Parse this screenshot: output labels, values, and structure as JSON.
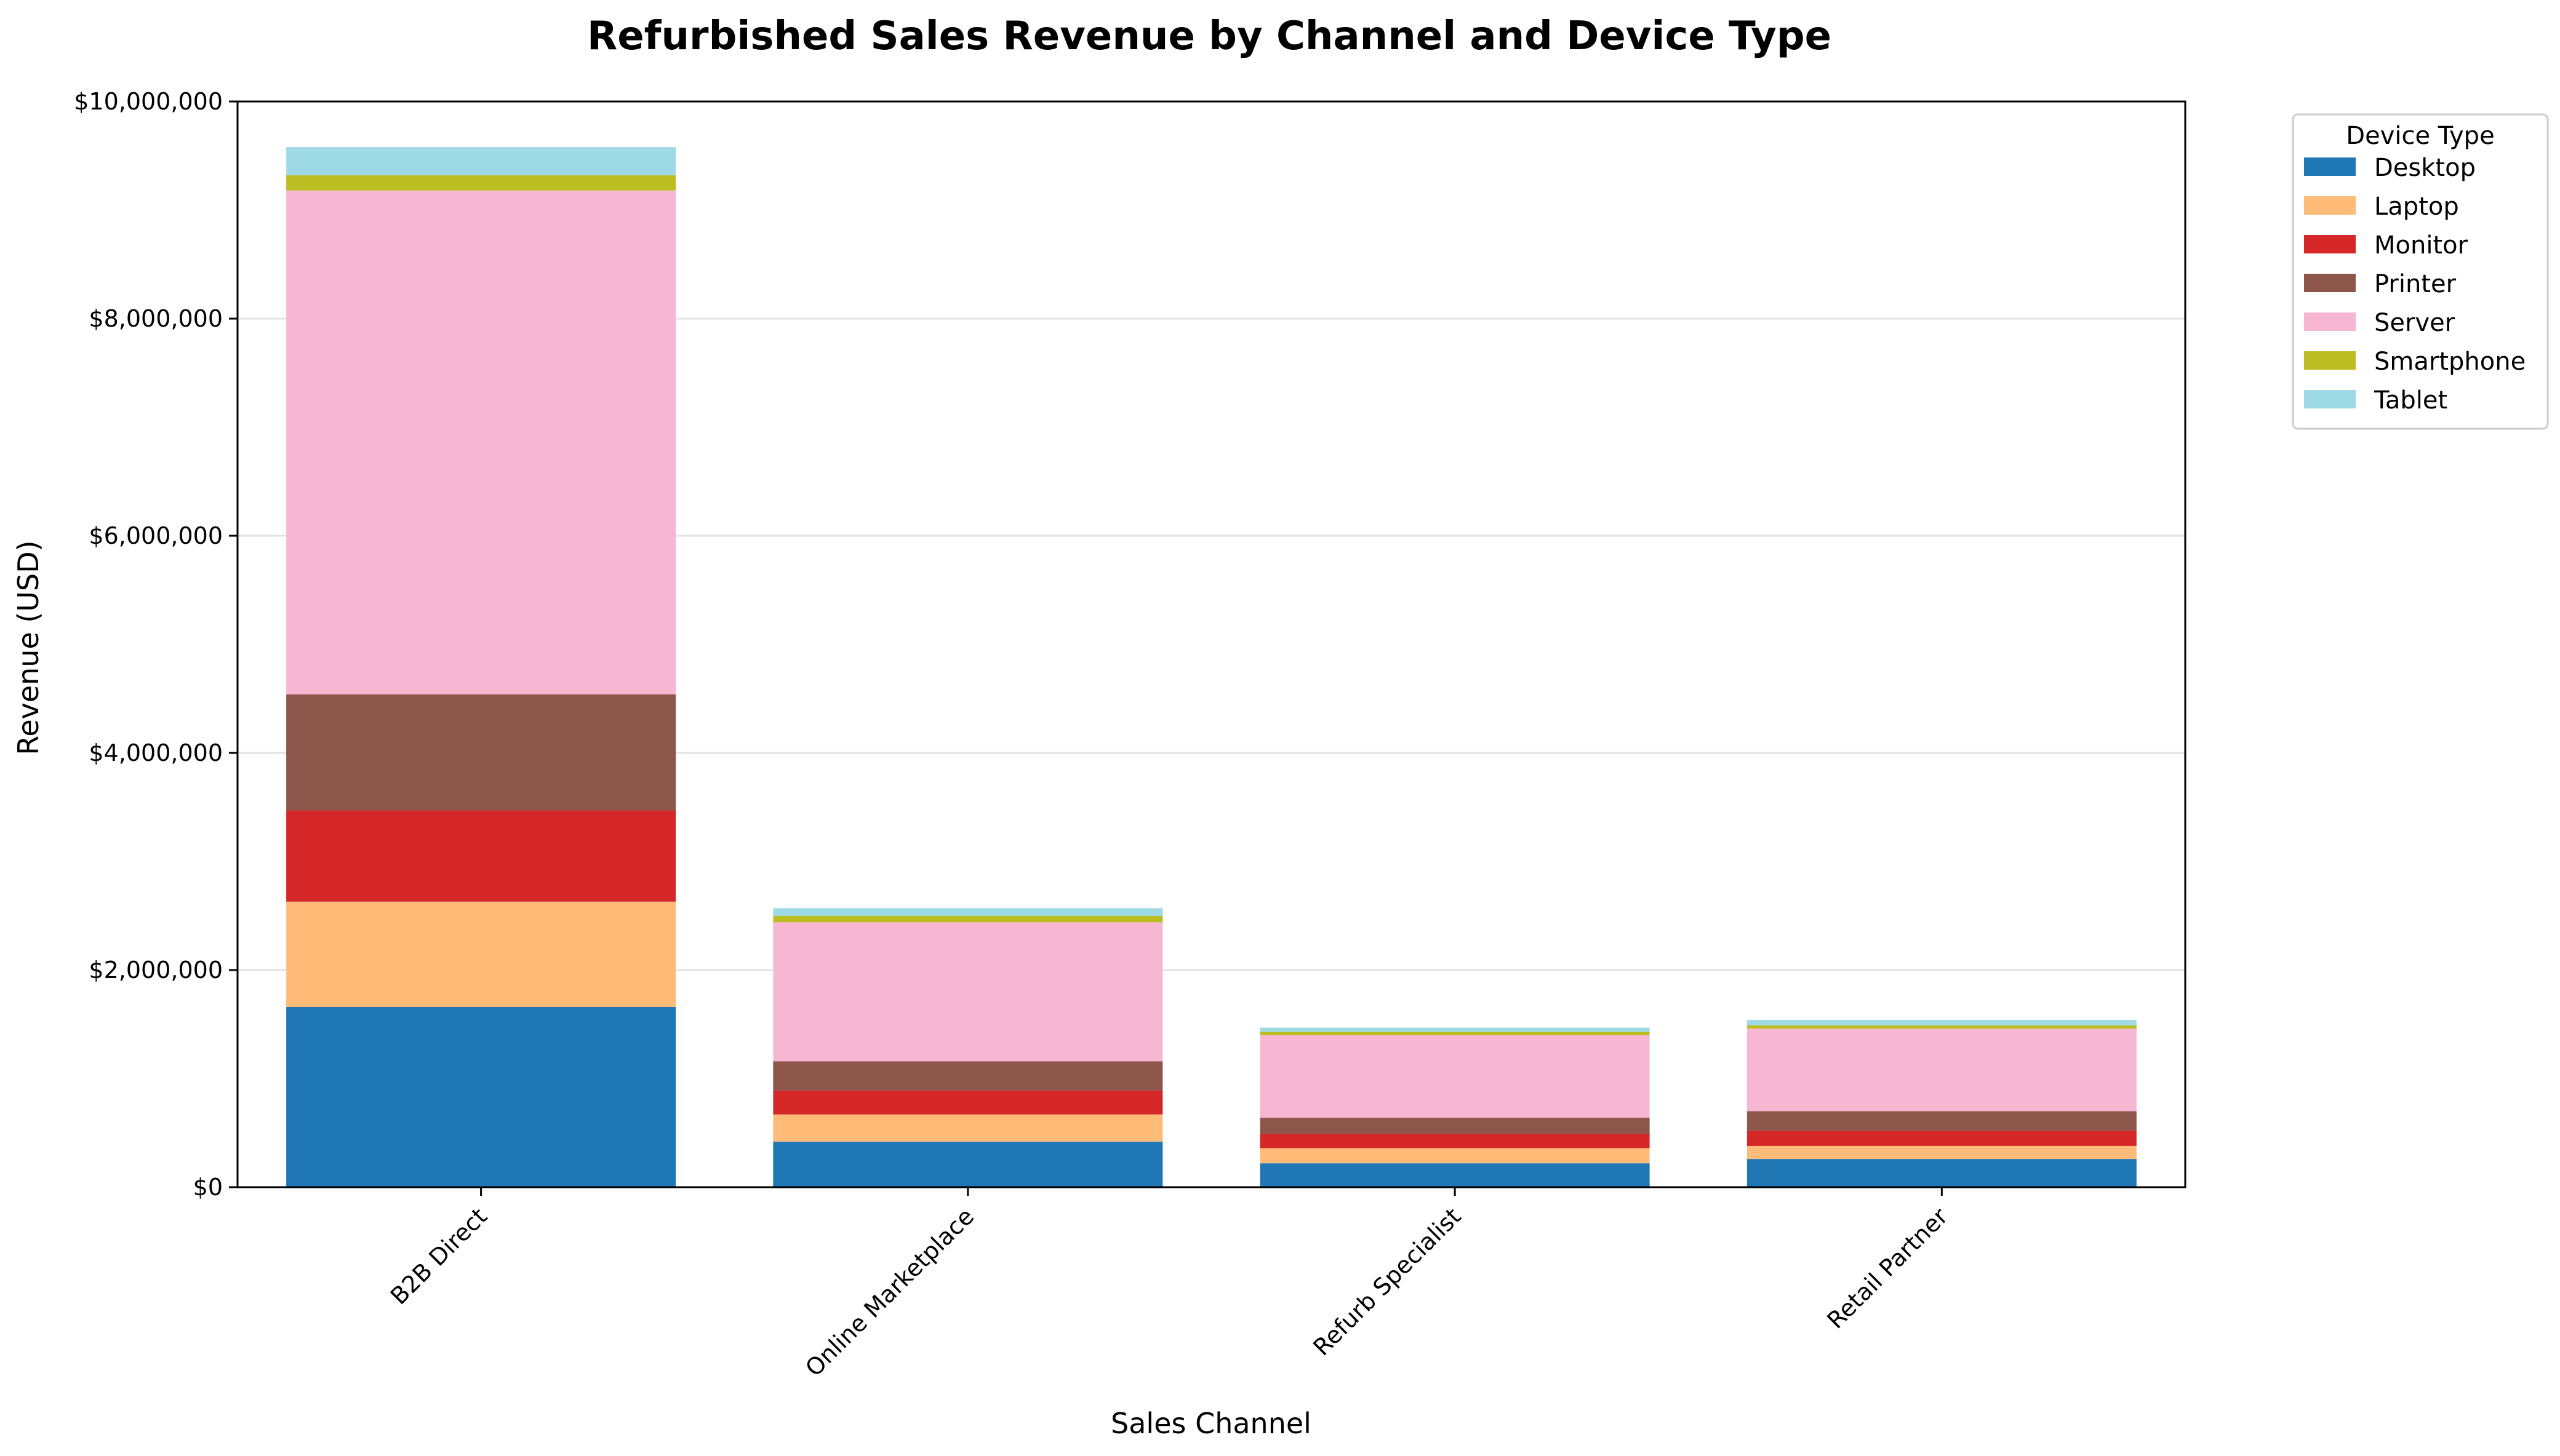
{
  "chart_data": {
    "type": "bar",
    "stacked": true,
    "title": "Refurbished Sales Revenue by Channel and Device Type",
    "xlabel": "Sales Channel",
    "ylabel": "Revenue (USD)",
    "ylim": [
      0,
      10000000
    ],
    "yticks": [
      0,
      2000000,
      4000000,
      6000000,
      8000000,
      10000000
    ],
    "ytick_labels": [
      "$0",
      "$2,000,000",
      "$4,000,000",
      "$6,000,000",
      "$8,000,000",
      "$10,000,000"
    ],
    "grid": "horizontal",
    "legend_title": "Device Type",
    "legend_position": "outside-top-right",
    "categories": [
      "B2B Direct",
      "Online Marketplace",
      "Refurb Specialist",
      "Retail Partner"
    ],
    "series": [
      {
        "name": "Desktop",
        "color": "#1f77b4",
        "values": [
          1660000,
          420000,
          220000,
          260000
        ]
      },
      {
        "name": "Laptop",
        "color": "#ffbb78",
        "values": [
          970000,
          250000,
          140000,
          120000
        ]
      },
      {
        "name": "Monitor",
        "color": "#d62728",
        "values": [
          840000,
          220000,
          130000,
          140000
        ]
      },
      {
        "name": "Printer",
        "color": "#8c564b",
        "values": [
          1070000,
          270000,
          150000,
          180000
        ]
      },
      {
        "name": "Server",
        "color": "#f7b6d2",
        "values": [
          4640000,
          1280000,
          760000,
          760000
        ]
      },
      {
        "name": "Smartphone",
        "color": "#bcbd22",
        "values": [
          140000,
          60000,
          30000,
          30000
        ]
      },
      {
        "name": "Tablet",
        "color": "#9edae5",
        "values": [
          260000,
          70000,
          40000,
          50000
        ]
      }
    ]
  }
}
